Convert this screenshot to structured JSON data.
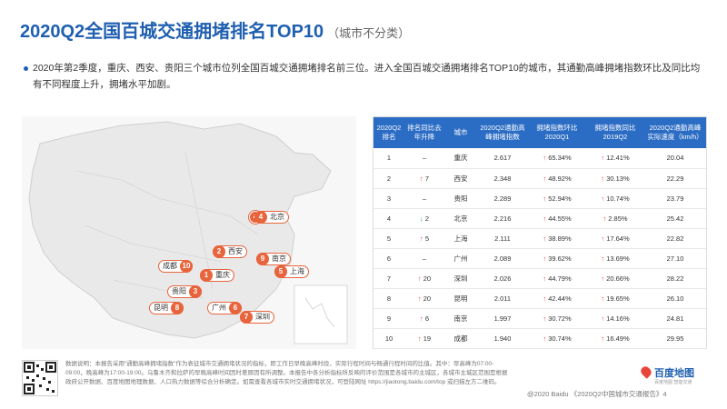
{
  "title": "2020Q2全国百城交通拥堵排名TOP10",
  "subtitle": "（城市不分类）",
  "summary": "2020年第2季度，重庆、西安、贵阳三个城市位列全国百城交通拥堵排名前三位。进入全国百城交通拥堵排名TOP10的城市，其通勤高峰拥堵指数环比及同比均有不同程度上升，拥堵水平加剧。",
  "map": {
    "place_labels": [
      {
        "text": "北京"
      },
      {
        "text": "西安"
      },
      {
        "text": "南京"
      },
      {
        "text": "上海"
      },
      {
        "text": "成都"
      },
      {
        "text": "重庆"
      },
      {
        "text": "贵阳"
      },
      {
        "text": "广州"
      },
      {
        "text": "昆明"
      },
      {
        "text": "深圳"
      }
    ],
    "markers": [
      {
        "rank": "4",
        "name": "北京"
      },
      {
        "rank": "2",
        "name": "西安"
      },
      {
        "rank": "9",
        "name": "南京"
      },
      {
        "rank": "5",
        "name": "上海"
      },
      {
        "rank": "10",
        "name": "成都"
      },
      {
        "rank": "1",
        "name": "重庆"
      },
      {
        "rank": "3",
        "name": "贵阳"
      },
      {
        "rank": "6",
        "name": "广州"
      },
      {
        "rank": "8",
        "name": "昆明"
      },
      {
        "rank": "7",
        "name": "深圳"
      }
    ],
    "colors": {
      "marker": "#e8643c",
      "land": "#e9e9e9",
      "sea": "#f7f7f7"
    }
  },
  "table": {
    "headers": [
      "2020Q2排名",
      "排名同比去年升降",
      "城市",
      "2020Q2通勤高峰拥堵指数",
      "拥堵指数环比2020Q1",
      "拥堵指数同比2019Q2",
      "2020Q2通勤高峰实际速度（km/h）"
    ],
    "rows": [
      {
        "rank": "1",
        "change_dir": "flat",
        "change": "–",
        "city": "重庆",
        "index": "2.617",
        "qoq": "65.34%",
        "yoy": "12.41%",
        "speed": "20.04"
      },
      {
        "rank": "2",
        "change_dir": "up",
        "change": "7",
        "city": "西安",
        "index": "2.348",
        "qoq": "48.92%",
        "yoy": "30.13%",
        "speed": "22.29"
      },
      {
        "rank": "3",
        "change_dir": "flat",
        "change": "–",
        "city": "贵阳",
        "index": "2.289",
        "qoq": "52.94%",
        "yoy": "10.74%",
        "speed": "23.79"
      },
      {
        "rank": "4",
        "change_dir": "down",
        "change": "2",
        "city": "北京",
        "index": "2.216",
        "qoq": "44.55%",
        "yoy": "2.85%",
        "speed": "25.42"
      },
      {
        "rank": "5",
        "change_dir": "up",
        "change": "5",
        "city": "上海",
        "index": "2.111",
        "qoq": "38.89%",
        "yoy": "17.64%",
        "speed": "22.82"
      },
      {
        "rank": "6",
        "change_dir": "flat",
        "change": "–",
        "city": "广州",
        "index": "2.089",
        "qoq": "39.62%",
        "yoy": "13.69%",
        "speed": "27.10"
      },
      {
        "rank": "7",
        "change_dir": "up",
        "change": "20",
        "city": "深圳",
        "index": "2.026",
        "qoq": "44.79%",
        "yoy": "20.66%",
        "speed": "28.22"
      },
      {
        "rank": "8",
        "change_dir": "up",
        "change": "20",
        "city": "昆明",
        "index": "2.011",
        "qoq": "42.44%",
        "yoy": "19.65%",
        "speed": "26.10"
      },
      {
        "rank": "9",
        "change_dir": "up",
        "change": "6",
        "city": "南京",
        "index": "1.997",
        "qoq": "30.72%",
        "yoy": "14.16%",
        "speed": "24.81"
      },
      {
        "rank": "10",
        "change_dir": "up",
        "change": "19",
        "city": "成都",
        "index": "1.940",
        "qoq": "30.74%",
        "yoy": "16.49%",
        "speed": "29.95"
      }
    ],
    "colors": {
      "header_bg": "#2b6cc4",
      "up": "#e8443c",
      "down": "#2aa84a"
    }
  },
  "footer": {
    "note": "数据说明：本报告采用“通勤高峰拥堵指数”作为表征城市交通拥堵状况的指标，即工作日早晚高峰时段，实际行程时间与畅通行程时间的比值。其中：早高峰为07:00-09:00，晚高峰为17:00-19:00。乌鲁木齐和拉萨的早晚高峰时间因时差原因有所调整。本报告中各分析指标所反映的评价范围是各城市的主城区，各城市主城区范围是根据政府公开数据、百度地图地理数据、人口热力数据等综合分析确定。如需查看各城市实时交通拥堵状况，可登陆网址 https://jiaotong.baidu.com/top 或扫描左方二维码。",
    "logo": "百度地图",
    "logo_slogan": "百度地图 智能交通",
    "copyright": "@2020 Baidu 《2020Q2中国城市交通报告》4",
    "qr_icon": "qr-code-icon"
  }
}
